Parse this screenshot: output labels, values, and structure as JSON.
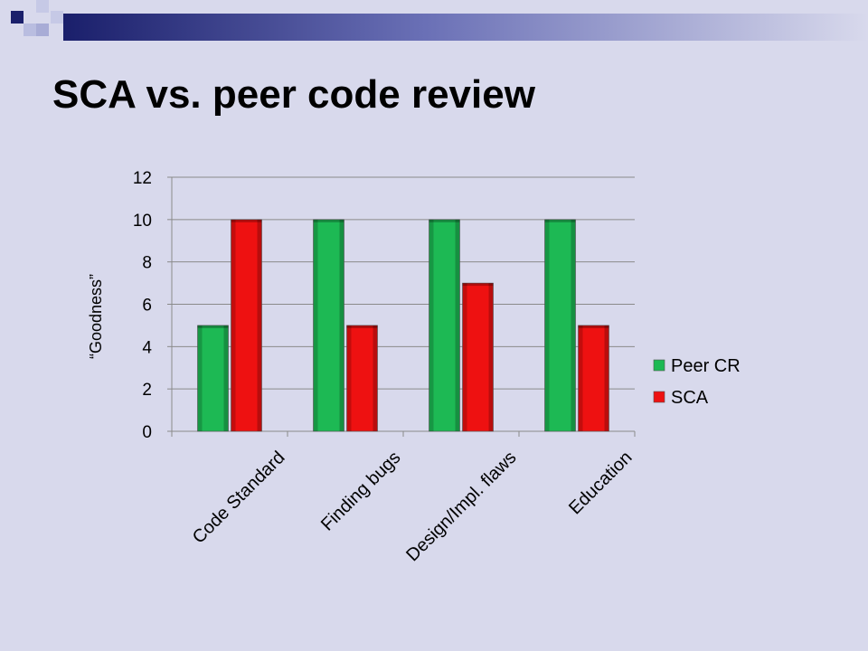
{
  "slide": {
    "title": "SCA vs. peer code review"
  },
  "colors": {
    "background": "#d8d9ec",
    "deco_dark": "#1a1f6b",
    "deco_light": "#b9bde0",
    "peer_cr": "#1db954",
    "sca": "#ee1111"
  },
  "chart_data": {
    "type": "bar",
    "categories": [
      "Code Standard",
      "Finding bugs",
      "Design/Impl. flaws",
      "Education"
    ],
    "series": [
      {
        "name": "Peer CR",
        "values": [
          5,
          10,
          10,
          10
        ],
        "color": "#1db954"
      },
      {
        "name": "SCA",
        "values": [
          10,
          5,
          7,
          5
        ],
        "color": "#ee1111"
      }
    ],
    "ylabel": "“Goodness”",
    "xlabel": "",
    "ylim": [
      0,
      12
    ],
    "yticks": [
      0,
      2,
      4,
      6,
      8,
      10,
      12
    ],
    "grid": true,
    "legend": "right"
  }
}
